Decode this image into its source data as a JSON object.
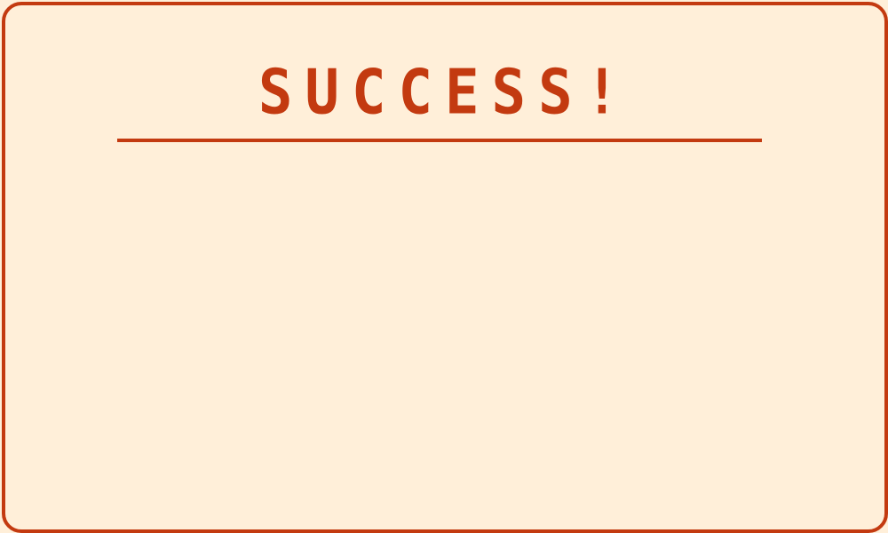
{
  "dialog": {
    "title": "SUCCESS!"
  },
  "colors": {
    "background": "#FFEFD9",
    "accent": "#C33A10"
  }
}
